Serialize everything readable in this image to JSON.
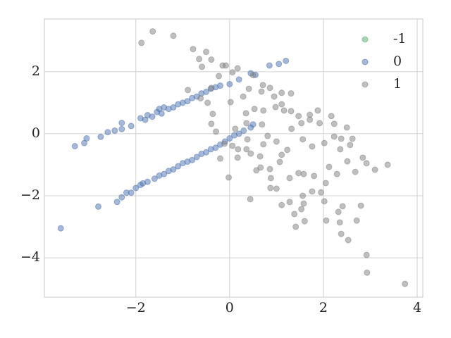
{
  "chart_data": {
    "type": "scatter",
    "xlim": [
      -3.95,
      4.12
    ],
    "ylim": [
      -5.27,
      3.7
    ],
    "xticks": [
      {
        "value": -2,
        "label": "−2"
      },
      0,
      2,
      4
    ],
    "yticks": [
      {
        "value": -4,
        "label": "−4"
      },
      {
        "value": -2,
        "label": "−2"
      },
      0,
      2
    ],
    "grid": true,
    "legend": "upper right",
    "alpha": 0.5,
    "series": [
      {
        "name": "-1",
        "color": "#55a868",
        "x": [],
        "y": []
      },
      {
        "name": "0",
        "color": "#4c72b0",
        "x": [
          -3.6,
          -3.3,
          -3.1,
          -3.05,
          -2.75,
          -2.6,
          -2.45,
          -2.3,
          -2.3,
          -2.1,
          -1.9,
          -1.8,
          -1.75,
          -1.65,
          -1.55,
          -1.5,
          -1.45,
          -1.4,
          -1.3,
          -1.2,
          -1.1,
          -1.0,
          -0.9,
          -0.8,
          -0.7,
          -0.6,
          -0.5,
          -0.4,
          -0.3,
          -0.2,
          0.0,
          0.2,
          0.45,
          0.55,
          0.85,
          1.05,
          1.2,
          -2.8,
          -2.4,
          -2.3,
          -2.2,
          -2.0,
          -1.9,
          -1.75,
          -1.6,
          -1.5,
          -1.4,
          -1.3,
          -1.2,
          -1.1,
          -1.0,
          -0.9,
          -0.8,
          -0.7,
          -0.6,
          -0.5,
          -0.4,
          -0.3,
          -0.2,
          -0.1,
          0.0,
          0.1,
          0.2,
          0.3,
          0.45,
          0.5,
          -2.1,
          -1.85
        ],
        "y": [
          -3.05,
          -0.4,
          -0.3,
          -0.15,
          -0.1,
          0.05,
          0.1,
          0.15,
          0.35,
          0.25,
          0.5,
          0.45,
          0.6,
          0.55,
          0.7,
          0.8,
          0.65,
          0.85,
          0.8,
          0.85,
          0.95,
          1.0,
          1.05,
          1.15,
          1.2,
          1.3,
          1.35,
          1.45,
          1.5,
          1.55,
          1.6,
          1.75,
          1.95,
          1.9,
          2.2,
          2.25,
          2.35,
          -2.35,
          -2.2,
          -2.05,
          -1.9,
          -1.75,
          -1.65,
          -1.55,
          -1.45,
          -1.35,
          -1.3,
          -1.2,
          -1.15,
          -1.05,
          -0.95,
          -0.9,
          -0.85,
          -0.75,
          -0.65,
          -0.6,
          -0.5,
          -0.45,
          -0.35,
          -0.25,
          -0.15,
          -0.05,
          0.0,
          0.1,
          0.2,
          0.3,
          -1.9,
          -1.6
        ]
      },
      {
        "name": "1",
        "color": "#808080",
        "x": [
          -1.88,
          -1.64,
          -1.2,
          -0.78,
          -0.65,
          -0.5,
          -0.59,
          -0.39,
          -0.15,
          -0.08,
          0.06,
          0.17,
          3.74,
          2.92,
          2.93,
          3.37,
          3.1,
          2.84,
          2.92,
          2.68,
          2.51,
          2.71,
          2.53,
          2.35,
          2.32,
          2.38,
          2.41,
          2.8,
          2.06,
          2.02,
          2.05,
          2.29,
          2.12,
          1.8,
          1.76,
          1.56,
          1.58,
          1.53,
          1.6,
          1.41,
          1.38,
          1.28,
          1.11,
          1.0,
          0.87,
          0.88,
          0.86,
          0.44,
          0.57,
          0.66,
          -0.02,
          0.18,
          0.36,
          0.38,
          0.65,
          1.11,
          1.23,
          1.47,
          1.58,
          1.07,
          0.72,
          0.81,
          1.0,
          1.56,
          1.76,
          2.02,
          2.23,
          2.38,
          2.62,
          2.36,
          2.57,
          2.5,
          2.23,
          2.17,
          1.92,
          1.71,
          1.47,
          1.53,
          1.32,
          1.16,
          0.98,
          0.72,
          0.53,
          0.68,
          0.95,
          1.11,
          1.31,
          1.11,
          0.41,
          0.29,
          0.5,
          0.71,
          0.86,
          -0.47,
          0.02,
          0.35,
          0.12,
          0.36,
          -0.36,
          -0.39,
          -0.29,
          -0.39,
          -0.62,
          -0.89,
          -0.23,
          0.69,
          1.31,
          1.71,
          1.88,
          0.06,
          -0.11,
          -0.2,
          0.17,
          0.45,
          1.28,
          1.95
        ],
        "y": [
          2.93,
          3.3,
          3.16,
          2.73,
          2.41,
          2.64,
          2.16,
          2.39,
          2.2,
          2.2,
          1.98,
          2.11,
          -4.84,
          -3.91,
          -4.48,
          -1.0,
          -1.16,
          -0.77,
          -0.95,
          -1.23,
          -0.89,
          -2.8,
          -3.43,
          -2.86,
          -2.52,
          -3.23,
          -2.34,
          -2.32,
          -2.8,
          -2.18,
          -1.59,
          -1.3,
          -1.07,
          -1.36,
          -1.86,
          -2.0,
          -2.25,
          -2.43,
          -2.82,
          -3.0,
          -2.59,
          -2.2,
          -2.3,
          -1.77,
          -1.75,
          -1.43,
          -1.14,
          -2.11,
          -1.18,
          -1.09,
          -1.41,
          -0.5,
          -0.5,
          -0.18,
          -0.73,
          -0.68,
          -0.52,
          -1.27,
          -1.3,
          -0.91,
          -0.34,
          -0.07,
          -0.25,
          -0.18,
          -0.41,
          -0.3,
          -0.09,
          -0.16,
          -0.16,
          -0.5,
          -0.36,
          0.2,
          0.32,
          0.57,
          0.34,
          0.45,
          0.57,
          0.34,
          0.16,
          0.75,
          0.86,
          0.75,
          0.8,
          1.36,
          1.2,
          1.32,
          1.3,
          0.95,
          1.45,
          1.2,
          1.89,
          1.57,
          1.48,
          1.0,
          1.02,
          0.66,
          0.16,
          0.34,
          0.64,
          0.32,
          0.07,
          1.48,
          1.14,
          1.41,
          1.86,
          0.3,
          0.73,
          0.61,
          0.75,
          -0.39,
          -0.32,
          -0.8,
          -0.77,
          -0.64,
          -1.43,
          -1.89
        ]
      }
    ]
  }
}
